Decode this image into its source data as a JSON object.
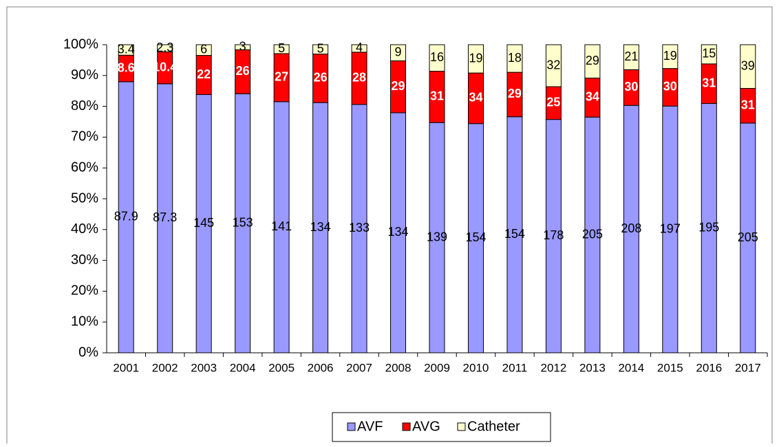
{
  "chart_data": {
    "type": "bar",
    "stacking": "percent",
    "categories": [
      "2001",
      "2002",
      "2003",
      "2004",
      "2005",
      "2006",
      "2007",
      "2008",
      "2009",
      "2010",
      "2011",
      "2012",
      "2013",
      "2014",
      "2015",
      "2016",
      "2017"
    ],
    "series": [
      {
        "name": "AVF",
        "color": "#9999ff",
        "label_color": "#000000",
        "label_bold": false,
        "values": [
          87.9,
          87.3,
          145,
          153,
          141,
          134,
          133,
          134,
          139,
          154,
          154,
          178,
          205,
          208,
          197,
          195,
          205
        ]
      },
      {
        "name": "AVG",
        "color": "#ff0000",
        "label_color": "#ffffff",
        "label_bold": true,
        "values": [
          8.6,
          10.4,
          22,
          26,
          27,
          26,
          28,
          29,
          31,
          34,
          29,
          25,
          34,
          30,
          30,
          31,
          31
        ]
      },
      {
        "name": "Catheter",
        "color": "#ffffcc",
        "label_color": "#000000",
        "label_bold": false,
        "values": [
          3.4,
          2.3,
          6,
          3,
          5,
          5,
          4,
          9,
          16,
          19,
          18,
          32,
          29,
          21,
          19,
          15,
          39
        ]
      }
    ],
    "ylim": [
      0,
      100
    ],
    "yticks": [
      {
        "value": 0,
        "label": "0%"
      },
      {
        "value": 10,
        "label": "10%"
      },
      {
        "value": 20,
        "label": "20%"
      },
      {
        "value": 30,
        "label": "30%"
      },
      {
        "value": 40,
        "label": "40%"
      },
      {
        "value": 50,
        "label": "50%"
      },
      {
        "value": 60,
        "label": "60%"
      },
      {
        "value": 70,
        "label": "70%"
      },
      {
        "value": 80,
        "label": "80%"
      },
      {
        "value": 90,
        "label": "90%"
      },
      {
        "value": 100,
        "label": "100%"
      }
    ],
    "grid": false,
    "legend": "bottom"
  }
}
